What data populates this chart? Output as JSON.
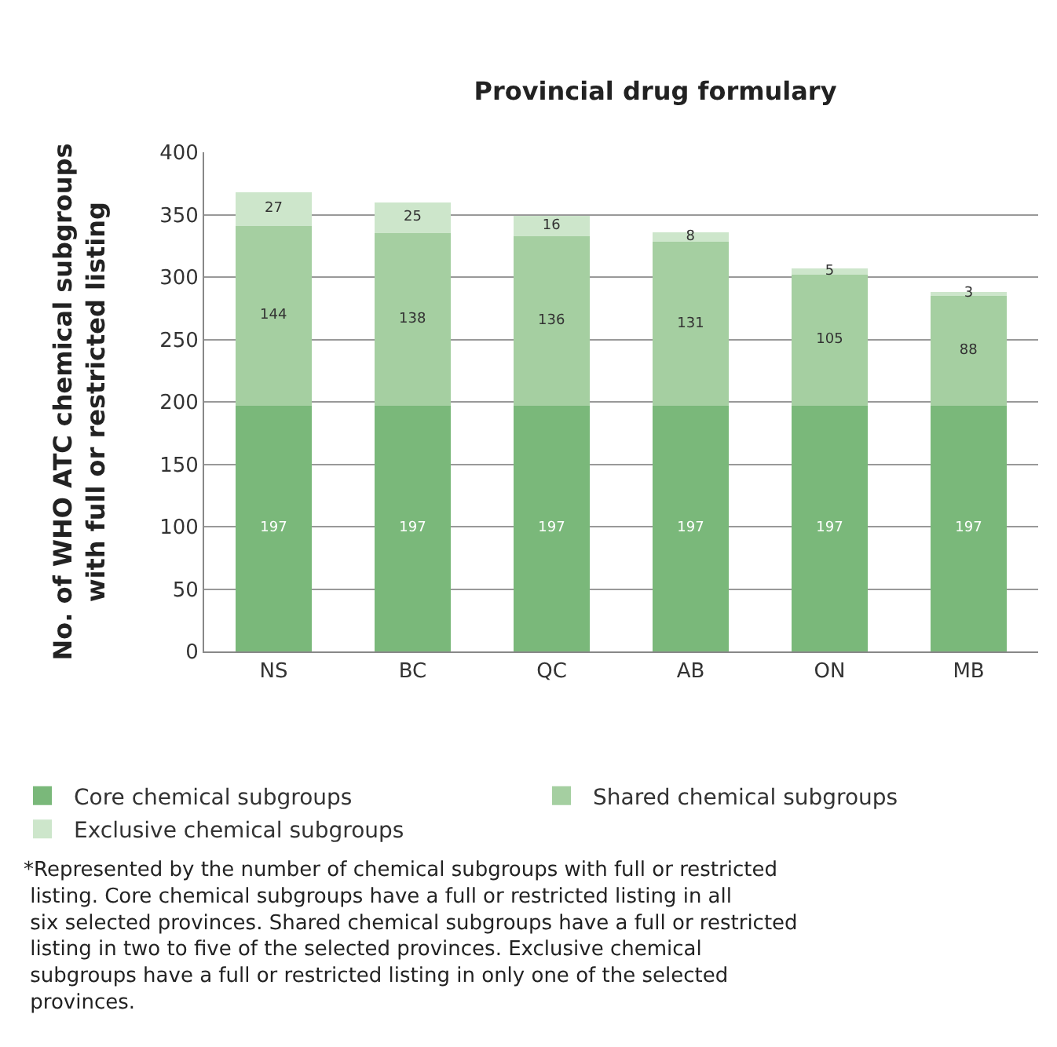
{
  "chart_data": {
    "type": "bar",
    "title": "Provincial drug formulary",
    "ylabel": "No. of WHO ATC chemical subgroups\nwith full or restricted listing",
    "categories": [
      "NS",
      "BC",
      "QC",
      "AB",
      "ON",
      "MB"
    ],
    "stacked": true,
    "series": [
      {
        "name": "Core chemical subgroups",
        "color": "#7ab87a",
        "values": [
          197,
          197,
          197,
          197,
          197,
          197
        ]
      },
      {
        "name": "Shared chemical subgroups",
        "color": "#a5cfa1",
        "values": [
          144,
          138,
          136,
          131,
          105,
          88
        ]
      },
      {
        "name": "Exclusive chemical subgroups",
        "color": "#cde6cb",
        "values": [
          27,
          25,
          16,
          8,
          5,
          3
        ]
      }
    ],
    "data_labels": true,
    "ylim": [
      0,
      400
    ],
    "yticks": [
      0,
      50,
      100,
      150,
      200,
      250,
      300,
      350,
      400
    ],
    "grid": "y",
    "legend": "bottom",
    "annotations": [
      "*Represented by the number of chemical subgroups with full or restricted listing. Core chemical subgroups have a full or restricted listing in all six selected provinces. Shared chemical subgroups have a full or restricted listing in two to five of the selected provinces. Exclusive chemical subgroups have a full or restricted listing in only one of the selected provinces."
    ]
  }
}
